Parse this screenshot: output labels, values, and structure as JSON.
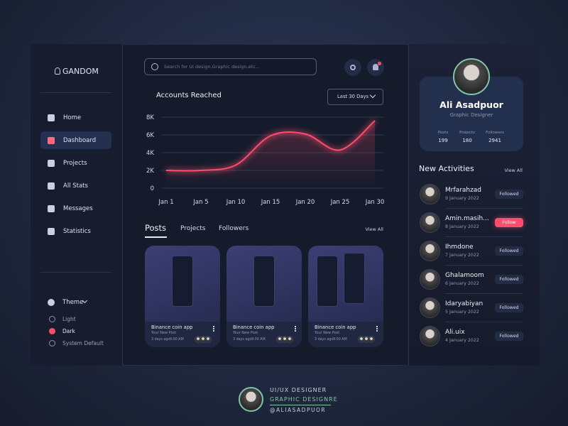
{
  "brand": "GANDOM",
  "nav": [
    "Home",
    "Dashboard",
    "Projects",
    "All Stats",
    "Messages",
    "Statistics"
  ],
  "theme": {
    "title": "Theme",
    "options": [
      "Light",
      "Dark",
      "System Default"
    ]
  },
  "search": {
    "placeholder": "Search for Ui design,Graphic design,etc..."
  },
  "range": "Last 30 Days",
  "chart_data": {
    "type": "line",
    "title": "Accounts Reached",
    "categories": [
      "Jan 1",
      "Jan 5",
      "Jan 10",
      "Jan 15",
      "Jan 20",
      "Jan 25",
      "Jan 30"
    ],
    "series": [
      {
        "name": "Accounts Reached",
        "color": "#ff4d6d",
        "values": [
          2000,
          2000,
          2600,
          5900,
          6100,
          4300,
          7600
        ]
      }
    ],
    "ylim": [
      0,
      8000
    ],
    "yticks": [
      0,
      {
        "value": 2000,
        "label": "2K"
      },
      {
        "value": 4000,
        "label": "4K"
      },
      {
        "value": 6000,
        "label": "6K"
      },
      {
        "value": 8000,
        "label": "8K"
      }
    ],
    "grid": true
  },
  "tabs": [
    "Posts",
    "Projects",
    "Followers"
  ],
  "tabs_view_all": "View All",
  "posts": [
    {
      "title": "Binance coin app",
      "subtitle": "Your New Post",
      "time": "3 days ago",
      "hour": "9:00 AM"
    },
    {
      "title": "Binance coin app",
      "subtitle": "Your New Post",
      "time": "3 days ago",
      "hour": "9:00 AM"
    },
    {
      "title": "Binance coin app",
      "subtitle": "Your New Post",
      "time": "3 days ago",
      "hour": "9:00 AM"
    }
  ],
  "profile": {
    "name": "Ali Asadpuor",
    "role": "Graphic Designer",
    "stats": [
      {
        "label": "Posts",
        "value": 199
      },
      {
        "label": "Projects",
        "value": 180
      },
      {
        "label": "Followers",
        "value": 2941
      }
    ]
  },
  "activities": {
    "title": "New Activities",
    "view_all": "View All",
    "items": [
      {
        "name": "Mrfarahzad",
        "date": "9 January 2022",
        "action": "Followed"
      },
      {
        "name": "Amin.masih...",
        "date": "8 January 2022",
        "action": "Follow"
      },
      {
        "name": "Ihmdone",
        "date": "7 January 2022",
        "action": "Followed"
      },
      {
        "name": "Ghalamoom",
        "date": "6 January 2022",
        "action": "Followed"
      },
      {
        "name": "Idaryabiyan",
        "date": "5 January 2022",
        "action": "Followed"
      },
      {
        "name": "Ali.uix",
        "date": "4 January 2022",
        "action": "Followed"
      }
    ]
  },
  "footer": {
    "line1": "UI/UX DESIGNER",
    "line2": "GRAPHIC DESIGNRE",
    "line3": "@ALIASADPUOR"
  }
}
